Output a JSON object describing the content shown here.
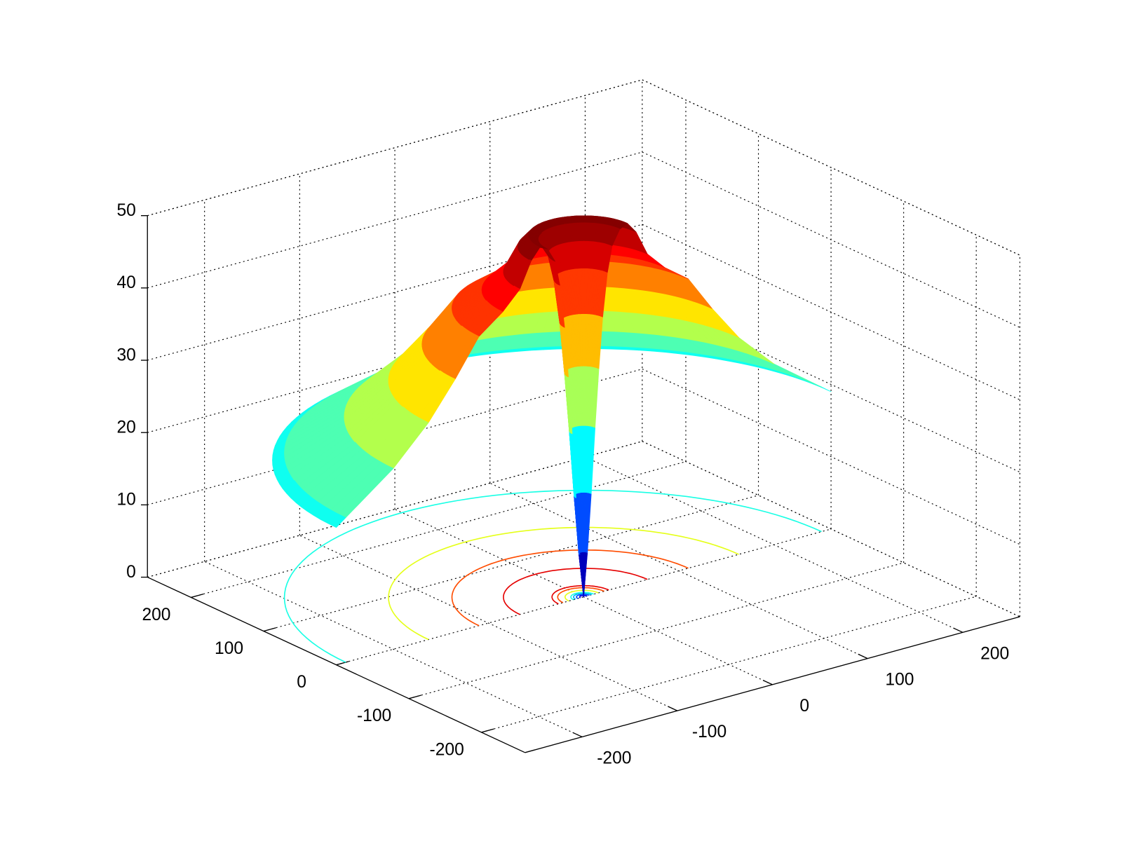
{
  "chart_data": {
    "type": "surface",
    "xlim": [
      -260,
      260
    ],
    "ylim": [
      -260,
      260
    ],
    "zlim": [
      0,
      50
    ],
    "xticks": [
      -200,
      -100,
      0,
      100,
      200
    ],
    "yticks": [
      -200,
      -100,
      0,
      100,
      200
    ],
    "zticks": [
      0,
      10,
      20,
      30,
      40,
      50
    ],
    "grid": true,
    "colormap": "jet",
    "theta_range": [
      0,
      180
    ],
    "r": [
      0,
      4,
      8,
      12,
      16,
      20,
      25,
      30,
      38,
      46,
      55,
      67,
      85,
      110,
      135,
      163,
      200,
      250,
      260
    ],
    "z": [
      0,
      6,
      14,
      23,
      31,
      38,
      44,
      47.5,
      49.5,
      50,
      48.5,
      45,
      42.5,
      40,
      35,
      30,
      25,
      20,
      19
    ],
    "contour_levels": [
      5,
      10,
      15,
      20,
      30,
      40,
      45
    ]
  }
}
